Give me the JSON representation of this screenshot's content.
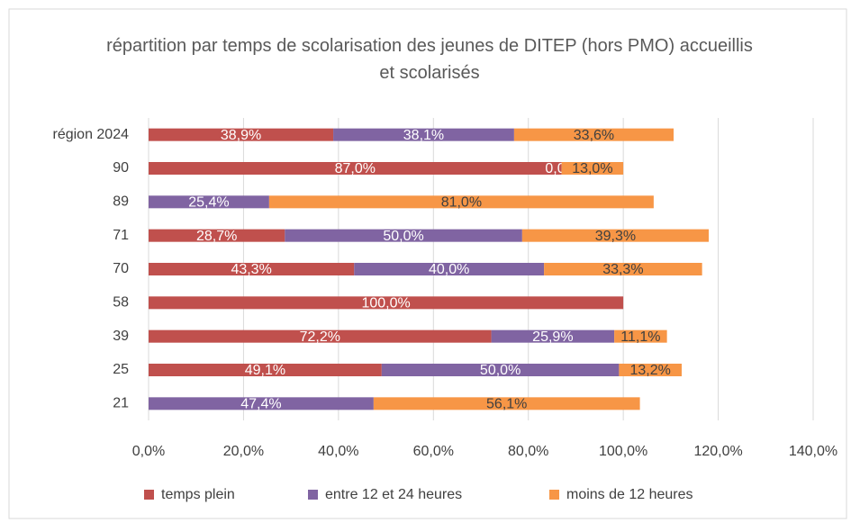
{
  "chart_data": {
    "type": "stacked_barh",
    "title": "répartition par temps de scolarisation des jeunes de DITEP (hors PMO) accueillis et scolarisés",
    "categories": [
      "région 2024",
      "90",
      "89",
      "71",
      "70",
      "58",
      "39",
      "25",
      "21"
    ],
    "series": [
      {
        "name": "temps plein",
        "color": "#c0504d",
        "values": [
          38.9,
          87.0,
          null,
          28.7,
          43.3,
          100.0,
          72.2,
          49.1,
          null
        ],
        "value_labels": [
          "38,9%",
          "87,0%",
          null,
          "28,7%",
          "43,3%",
          "100,0%",
          "72,2%",
          "49,1%",
          null
        ]
      },
      {
        "name": "entre 12 et 24 heures",
        "color": "#8064a2",
        "values": [
          38.1,
          0.0,
          25.4,
          50.0,
          40.0,
          null,
          25.9,
          50.0,
          47.4
        ],
        "value_labels": [
          "38,1%",
          "0,0%",
          "25,4%",
          "50,0%",
          "40,0%",
          null,
          "25,9%",
          "50,0%",
          "47,4%"
        ]
      },
      {
        "name": "moins de 12 heures",
        "color": "#f79646",
        "values": [
          33.6,
          13.0,
          81.0,
          39.3,
          33.3,
          null,
          11.1,
          13.2,
          56.1
        ],
        "value_labels": [
          "33,6%",
          "13,0%",
          "81,0%",
          "39,3%",
          "33,3%",
          null,
          "11,1%",
          "13,2%",
          "56,1%"
        ]
      }
    ],
    "xlim": [
      0,
      140
    ],
    "xticks": [
      {
        "value": 0,
        "label": "0,0%"
      },
      {
        "value": 20,
        "label": "20,0%"
      },
      {
        "value": 40,
        "label": "40,0%"
      },
      {
        "value": 60,
        "label": "60,0%"
      },
      {
        "value": 80,
        "label": "80,0%"
      },
      {
        "value": 100,
        "label": "100,0%"
      },
      {
        "value": 120,
        "label": "120,0%"
      },
      {
        "value": 140,
        "label": "140,0%"
      }
    ],
    "grid": true,
    "legend": "bottom"
  }
}
